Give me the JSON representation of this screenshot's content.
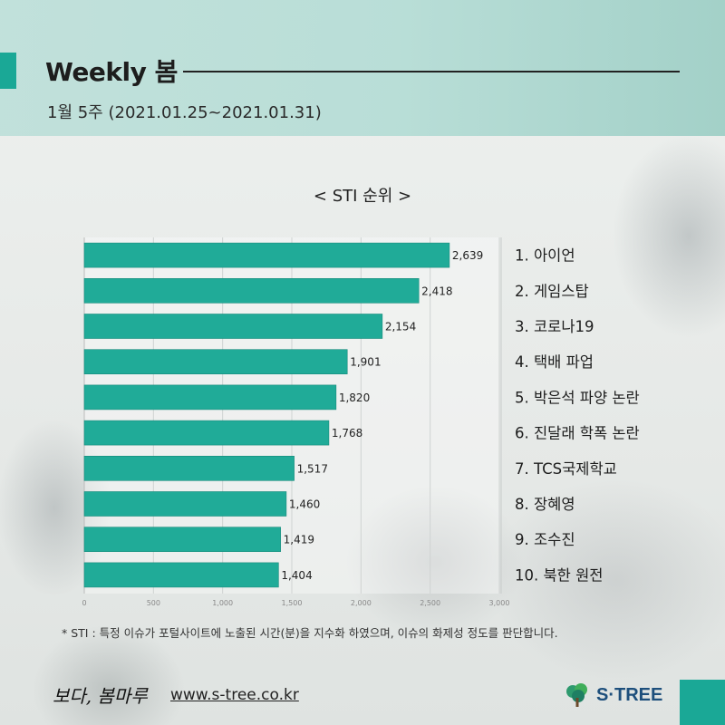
{
  "header": {
    "title": "Weekly 봄",
    "subtitle": "1월 5주 (2021.01.25~2021.01.31)"
  },
  "colors": {
    "accent": "#1aa896",
    "bar": "#20ab98",
    "header_bg": "#b8ddd6"
  },
  "chart_data": {
    "type": "bar",
    "orientation": "horizontal",
    "title": "< STI 순위 >",
    "categories": [
      "1. 아이언",
      "2. 게임스탑",
      "3. 코로나19",
      "4. 택배 파업",
      "5. 박은석 파양 논란",
      "6. 진달래 학폭 논란",
      "7. TCS국제학교",
      "8. 장혜영",
      "9. 조수진",
      "10. 북한 원전"
    ],
    "values": [
      2639,
      2418,
      2154,
      1901,
      1820,
      1768,
      1517,
      1460,
      1419,
      1404
    ],
    "value_labels": [
      "2,639",
      "2,418",
      "2,154",
      "1,901",
      "1,820",
      "1,768",
      "1,517",
      "1,460",
      "1,419",
      "1,404"
    ],
    "xlim": [
      0,
      3000
    ],
    "xticks": [
      0,
      500,
      1000,
      1500,
      2000,
      2500,
      3000
    ],
    "xtick_labels": [
      "0",
      "500",
      "1,000",
      "1,500",
      "2,000",
      "2,500",
      "3,000"
    ],
    "grid": true
  },
  "footnote": "* STI : 특정 이슈가 포털사이트에 노출된 시간(분)을 지수화 하였으며, 이슈의 화제성 정도를 판단합니다.",
  "footer": {
    "brand": "보다, 봄마루",
    "website": "www.s-tree.co.kr",
    "logo_text": "S·TREE",
    "logo_icon": "tree-icon"
  }
}
